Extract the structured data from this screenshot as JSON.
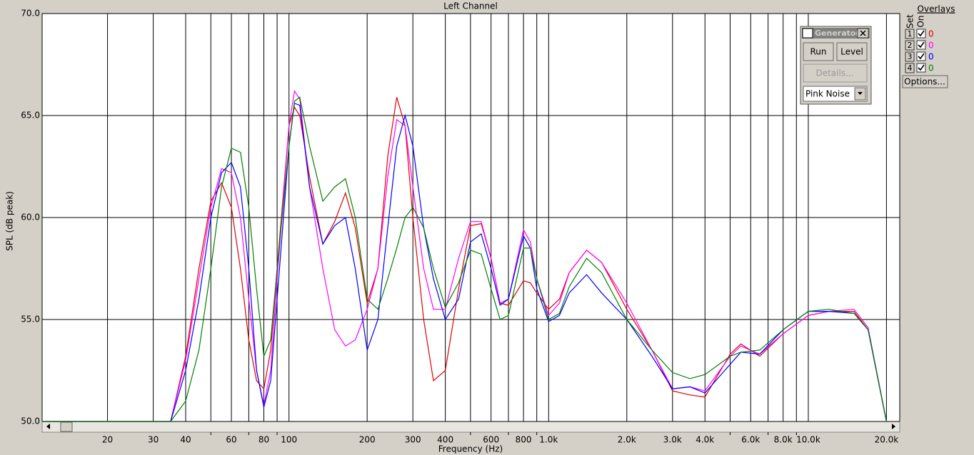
{
  "chart_data": {
    "type": "line",
    "title": "Left Channel",
    "xlabel": "Frequency (Hz)",
    "ylabel": "SPL (dB peak)",
    "xscale": "log",
    "grid": true,
    "xlim": [
      11.2,
      22500
    ],
    "ylim": [
      50,
      70
    ],
    "xticks": [
      20,
      30,
      40,
      60,
      80,
      100,
      200,
      300,
      400,
      600,
      800,
      {
        "value": 1000,
        "label": "1.0k"
      },
      {
        "value": 2000,
        "label": "2.0k"
      },
      {
        "value": 3000,
        "label": "3.0k"
      },
      {
        "value": 4000,
        "label": "4.0k"
      },
      {
        "value": 6000,
        "label": "6.0k"
      },
      {
        "value": 8000,
        "label": "8.0k"
      },
      {
        "value": 10000,
        "label": "10.0k"
      },
      {
        "value": 20000,
        "label": "20.0k"
      }
    ],
    "x_minor_ticks": [
      50,
      70,
      90,
      500,
      700,
      900,
      5000,
      7000,
      9000
    ],
    "yticks": [
      {
        "value": 50,
        "label": "50.0"
      },
      {
        "value": 55,
        "label": "55.0"
      },
      {
        "value": 60,
        "label": "60.0"
      },
      {
        "value": 65,
        "label": "65.0"
      },
      {
        "value": 70,
        "label": "70.0"
      }
    ],
    "x": [
      11.2,
      35,
      40,
      45,
      50,
      55,
      60,
      65,
      70,
      75,
      80,
      85,
      90,
      100,
      105,
      110,
      120,
      135,
      150,
      165,
      180,
      200,
      220,
      240,
      260,
      280,
      300,
      330,
      360,
      400,
      450,
      500,
      550,
      600,
      650,
      700,
      800,
      850,
      900,
      1000,
      1100,
      1200,
      1400,
      1600,
      2000,
      2500,
      3000,
      3500,
      4000,
      5000,
      5500,
      6500,
      8000,
      10000,
      12000,
      15000,
      17000,
      20000
    ],
    "series": [
      {
        "color": "#e00000",
        "values": [
          50,
          50,
          53.2,
          57.5,
          60.8,
          61.7,
          60.5,
          57.5,
          54,
          52,
          51.6,
          53.5,
          57.5,
          64.5,
          65.4,
          65,
          62,
          58.7,
          59.8,
          61.2,
          59.5,
          55.8,
          57.5,
          63,
          65.9,
          64.5,
          60,
          55,
          52,
          52.5,
          56.5,
          59.6,
          59.7,
          58,
          55.8,
          55.7,
          56.9,
          56.8,
          56.3,
          55.5,
          56,
          57.3,
          58.4,
          57.8,
          55.5,
          53.5,
          51.5,
          51.3,
          51.2,
          53.3,
          53.8,
          53.2,
          54.3,
          55.2,
          55.4,
          55.4,
          54.5,
          50
        ]
      },
      {
        "color": "#ff00ff",
        "values": [
          50,
          50,
          53,
          57,
          60.5,
          62.4,
          62.2,
          60,
          56,
          52.5,
          50.8,
          52.5,
          57,
          64.5,
          66.2,
          65.8,
          61.5,
          57.5,
          54.5,
          53.7,
          54,
          55.5,
          57.5,
          62,
          64.8,
          64.5,
          61.5,
          57.5,
          55.5,
          55.5,
          58,
          59.8,
          59.8,
          58,
          55.8,
          56,
          59.4,
          58.8,
          57,
          55.2,
          55.8,
          57.3,
          58.4,
          57.8,
          55.8,
          53.5,
          51.6,
          51.7,
          51.5,
          53.2,
          53.7,
          53.3,
          54.3,
          55.2,
          55.4,
          55.5,
          54.6,
          50
        ]
      },
      {
        "color": "#0000ff",
        "values": [
          50,
          50,
          52.5,
          56,
          60,
          62.2,
          62.7,
          61.5,
          57.5,
          52.5,
          50.7,
          52,
          56,
          63.5,
          65.6,
          65.5,
          61.5,
          58.7,
          59.6,
          60,
          57.5,
          53.5,
          55,
          59.5,
          63.5,
          65,
          63.5,
          59.5,
          57,
          55,
          56,
          58.8,
          59.2,
          57.5,
          55.7,
          56,
          59.1,
          58.5,
          56.5,
          54.9,
          55.2,
          56.3,
          57.2,
          56.3,
          55,
          53.2,
          51.6,
          51.7,
          51.4,
          52.8,
          53.4,
          53.3,
          54.5,
          55.4,
          55.4,
          55.3,
          54.5,
          50
        ]
      },
      {
        "color": "#008000",
        "values": [
          50,
          50,
          51,
          53.5,
          57.5,
          61.5,
          63.4,
          63.2,
          60.5,
          56.5,
          53.2,
          54,
          57.5,
          63.5,
          65.7,
          65.9,
          63.5,
          60.8,
          61.5,
          61.9,
          60,
          56,
          55.5,
          57,
          58.5,
          60,
          60.5,
          59.5,
          57.5,
          55.6,
          56.8,
          58.4,
          58.2,
          56.5,
          55,
          55.2,
          58.5,
          58.5,
          57,
          55,
          55.3,
          56.6,
          58,
          57.3,
          55,
          53.5,
          52.4,
          52.1,
          52.3,
          53.2,
          53.4,
          53.5,
          54.5,
          55.4,
          55.5,
          55.3,
          54.5,
          50
        ]
      }
    ]
  },
  "generator": {
    "title": "Generator",
    "run": "Run",
    "level": "Level",
    "details": "Details...",
    "signal": "Pink Noise"
  },
  "overlays": {
    "title": "Overlays",
    "set": "Set",
    "on": "On",
    "rows": [
      {
        "set": "1",
        "value": "0"
      },
      {
        "set": "2",
        "value": "0"
      },
      {
        "set": "3",
        "value": "0"
      },
      {
        "set": "4",
        "value": "0"
      }
    ],
    "options": "Options..."
  }
}
